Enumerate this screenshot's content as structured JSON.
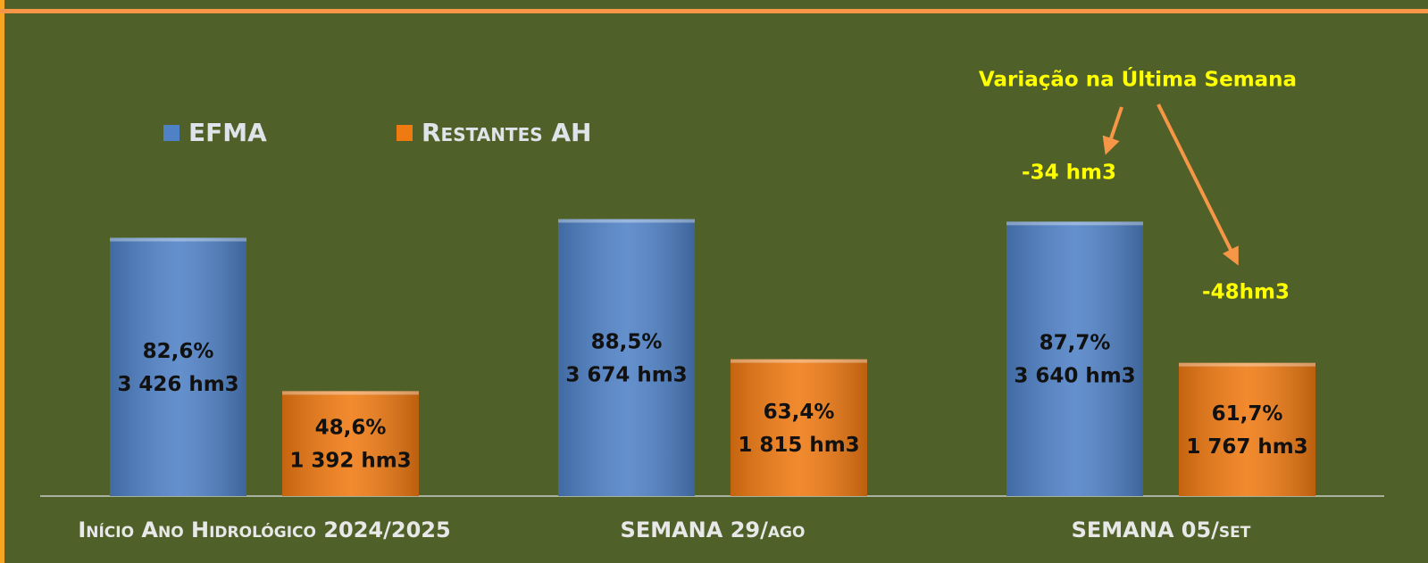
{
  "chart_data": {
    "type": "bar",
    "categories": [
      "Início Ano Hidrológico 2024/2025",
      "SEMANA 29/ago",
      "SEMANA 05/set"
    ],
    "series": [
      {
        "name": "EFMA",
        "color": "#4f81c6",
        "values": [
          3426,
          3674,
          3640
        ],
        "value_labels": [
          "3 426 hm3",
          "3 674 hm3",
          "3 640 hm3"
        ],
        "percentages": [
          82.6,
          88.5,
          87.7
        ],
        "percentage_labels": [
          "82,6%",
          "88,5%",
          "87,7%"
        ]
      },
      {
        "name": "Restantes AH",
        "color": "#f07a12",
        "values": [
          1392,
          1815,
          1767
        ],
        "value_labels": [
          "1 392 hm3",
          "1 815 hm3",
          "1 767 hm3"
        ],
        "percentages": [
          48.6,
          63.4,
          61.7
        ],
        "percentage_labels": [
          "48,6%",
          "63,4%",
          "61,7%"
        ]
      }
    ],
    "ylim": [
      0,
      4000
    ],
    "legend": "top",
    "annotations": {
      "title": "Variação na Última Semana",
      "efma_change": "-34 hm3",
      "restantes_change": "-48hm3"
    }
  }
}
